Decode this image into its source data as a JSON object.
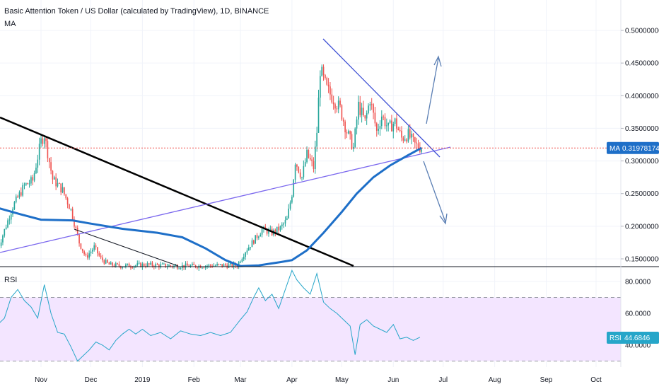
{
  "header": {
    "title": "Basic Attention Token / US Dollar (calculated by TradingView), 1D, BINANCE",
    "indicator": "MA"
  },
  "rsi_panel": {
    "label": "RSI"
  },
  "badges": {
    "ma_label": "MA",
    "ma_value": "0.31978174",
    "rsi_label": "RSI",
    "rsi_value": "44.6846"
  },
  "colors": {
    "up": "#26a69a",
    "down": "#ef5350",
    "ma": "#1e6fc8",
    "trend_purple": "#7b68ee",
    "trend_blue": "#3f51d4",
    "rsi_line": "#26a6c9",
    "rsi_band": "#f3e5ff",
    "badge": "#1e6fc8",
    "rsi_badge": "#26a6c9",
    "price_line": "#ef5350"
  },
  "chart_data": [
    {
      "type": "candlestick",
      "title": "Basic Attention Token / US Dollar (calculated by TradingView), 1D, BINANCE",
      "x_ticks": [
        "Nov",
        "Dec",
        "2019",
        "Feb",
        "Mar",
        "Apr",
        "May",
        "Jun",
        "Jul",
        "Aug",
        "Sep",
        "Oct"
      ],
      "y_ticks": [
        "0.50000000",
        "0.45000000",
        "0.40000000",
        "0.35000000",
        "0.30000000",
        "0.25000000",
        "0.20000000",
        "0.15000000"
      ],
      "ylim": [
        0.137,
        0.53
      ],
      "last_price": 0.3198,
      "close_trace": [
        [
          "2018-10-06",
          0.165
        ],
        [
          "2018-10-15",
          0.23
        ],
        [
          "2018-10-22",
          0.262
        ],
        [
          "2018-10-27",
          0.27
        ],
        [
          "2018-11-01",
          0.33
        ],
        [
          "2018-11-03",
          0.34
        ],
        [
          "2018-11-08",
          0.272
        ],
        [
          "2018-11-14",
          0.255
        ],
        [
          "2018-11-19",
          0.225
        ],
        [
          "2018-11-24",
          0.175
        ],
        [
          "2018-11-28",
          0.152
        ],
        [
          "2018-12-03",
          0.168
        ],
        [
          "2018-12-07",
          0.15
        ],
        [
          "2018-12-12",
          0.141
        ],
        [
          "2018-12-20",
          0.139
        ],
        [
          "2018-12-27",
          0.14
        ],
        [
          "2019-01-03",
          0.141
        ],
        [
          "2019-01-10",
          0.14
        ],
        [
          "2019-01-20",
          0.139
        ],
        [
          "2019-02-01",
          0.139
        ],
        [
          "2019-02-15",
          0.14
        ],
        [
          "2019-02-27",
          0.14
        ],
        [
          "2019-03-04",
          0.162
        ],
        [
          "2019-03-09",
          0.178
        ],
        [
          "2019-03-14",
          0.195
        ],
        [
          "2019-03-20",
          0.19
        ],
        [
          "2019-03-25",
          0.197
        ],
        [
          "2019-03-29",
          0.21
        ],
        [
          "2019-04-01",
          0.25
        ],
        [
          "2019-04-03",
          0.3
        ],
        [
          "2019-04-07",
          0.275
        ],
        [
          "2019-04-10",
          0.31
        ],
        [
          "2019-04-14",
          0.29
        ],
        [
          "2019-04-16",
          0.345
        ],
        [
          "2019-04-18",
          0.44
        ],
        [
          "2019-04-22",
          0.41
        ],
        [
          "2019-04-26",
          0.395
        ],
        [
          "2019-04-30",
          0.38
        ],
        [
          "2019-05-04",
          0.345
        ],
        [
          "2019-05-08",
          0.32
        ],
        [
          "2019-05-11",
          0.385
        ],
        [
          "2019-05-15",
          0.36
        ],
        [
          "2019-05-18",
          0.395
        ],
        [
          "2019-05-22",
          0.345
        ],
        [
          "2019-05-25",
          0.37
        ],
        [
          "2019-05-29",
          0.35
        ],
        [
          "2019-06-02",
          0.36
        ],
        [
          "2019-06-06",
          0.335
        ],
        [
          "2019-06-10",
          0.34
        ],
        [
          "2019-06-14",
          0.325
        ],
        [
          "2019-06-18",
          0.32
        ]
      ]
    },
    {
      "type": "line",
      "series": [
        {
          "name": "MA",
          "points": [
            [
              "2018-10-06",
              0.228
            ],
            [
              "2018-10-20",
              0.218
            ],
            [
              "2018-11-01",
              0.21
            ],
            [
              "2018-11-20",
              0.209
            ],
            [
              "2018-12-01",
              0.204
            ],
            [
              "2018-12-20",
              0.196
            ],
            [
              "2019-01-10",
              0.19
            ],
            [
              "2019-01-25",
              0.183
            ],
            [
              "2019-02-08",
              0.166
            ],
            [
              "2019-02-20",
              0.148
            ],
            [
              "2019-03-01",
              0.139
            ],
            [
              "2019-03-12",
              0.14
            ],
            [
              "2019-03-25",
              0.145
            ],
            [
              "2019-04-01",
              0.148
            ],
            [
              "2019-04-10",
              0.163
            ],
            [
              "2019-04-20",
              0.19
            ],
            [
              "2019-05-01",
              0.222
            ],
            [
              "2019-05-10",
              0.25
            ],
            [
              "2019-05-20",
              0.275
            ],
            [
              "2019-05-30",
              0.293
            ],
            [
              "2019-06-10",
              0.309
            ],
            [
              "2019-06-18",
              0.32
            ]
          ]
        }
      ],
      "ylim": [
        0.137,
        0.53
      ]
    },
    {
      "type": "line",
      "title": "RSI",
      "y_ticks": [
        "80.0000",
        "60.0000",
        "40.0000"
      ],
      "ylim": [
        15,
        92
      ],
      "bands": [
        30,
        70
      ],
      "series": [
        {
          "name": "RSI",
          "points": [
            [
              "2018-10-06",
              53
            ],
            [
              "2018-10-10",
              57
            ],
            [
              "2018-10-14",
              70
            ],
            [
              "2018-10-18",
              75
            ],
            [
              "2018-10-22",
              68
            ],
            [
              "2018-10-26",
              64
            ],
            [
              "2018-10-30",
              57
            ],
            [
              "2018-11-03",
              78
            ],
            [
              "2018-11-07",
              60
            ],
            [
              "2018-11-11",
              48
            ],
            [
              "2018-11-15",
              47
            ],
            [
              "2018-11-19",
              39
            ],
            [
              "2018-11-23",
              30
            ],
            [
              "2018-11-26",
              33
            ],
            [
              "2018-11-30",
              37
            ],
            [
              "2018-12-04",
              42
            ],
            [
              "2018-12-08",
              40
            ],
            [
              "2018-12-12",
              37
            ],
            [
              "2018-12-16",
              43
            ],
            [
              "2018-12-20",
              47
            ],
            [
              "2018-12-24",
              50
            ],
            [
              "2018-12-28",
              47
            ],
            [
              "2019-01-01",
              50
            ],
            [
              "2019-01-06",
              46
            ],
            [
              "2019-01-12",
              48
            ],
            [
              "2019-01-18",
              44
            ],
            [
              "2019-01-24",
              49
            ],
            [
              "2019-01-30",
              47
            ],
            [
              "2019-02-05",
              46
            ],
            [
              "2019-02-11",
              48
            ],
            [
              "2019-02-17",
              46
            ],
            [
              "2019-02-23",
              48
            ],
            [
              "2019-03-01",
              56
            ],
            [
              "2019-03-05",
              61
            ],
            [
              "2019-03-09",
              70
            ],
            [
              "2019-03-12",
              76
            ],
            [
              "2019-03-16",
              68
            ],
            [
              "2019-03-20",
              72
            ],
            [
              "2019-03-24",
              63
            ],
            [
              "2019-03-28",
              75
            ],
            [
              "2019-04-01",
              87
            ],
            [
              "2019-04-04",
              81
            ],
            [
              "2019-04-08",
              76
            ],
            [
              "2019-04-12",
              72
            ],
            [
              "2019-04-16",
              85
            ],
            [
              "2019-04-20",
              67
            ],
            [
              "2019-04-24",
              63
            ],
            [
              "2019-04-28",
              60
            ],
            [
              "2019-05-02",
              56
            ],
            [
              "2019-05-06",
              52
            ],
            [
              "2019-05-09",
              34
            ],
            [
              "2019-05-12",
              53
            ],
            [
              "2019-05-16",
              56
            ],
            [
              "2019-05-20",
              52
            ],
            [
              "2019-05-24",
              50
            ],
            [
              "2019-05-28",
              48
            ],
            [
              "2019-06-01",
              53
            ],
            [
              "2019-06-05",
              44
            ],
            [
              "2019-06-09",
              45
            ],
            [
              "2019-06-13",
              43
            ],
            [
              "2019-06-17",
              45
            ]
          ]
        }
      ]
    }
  ]
}
